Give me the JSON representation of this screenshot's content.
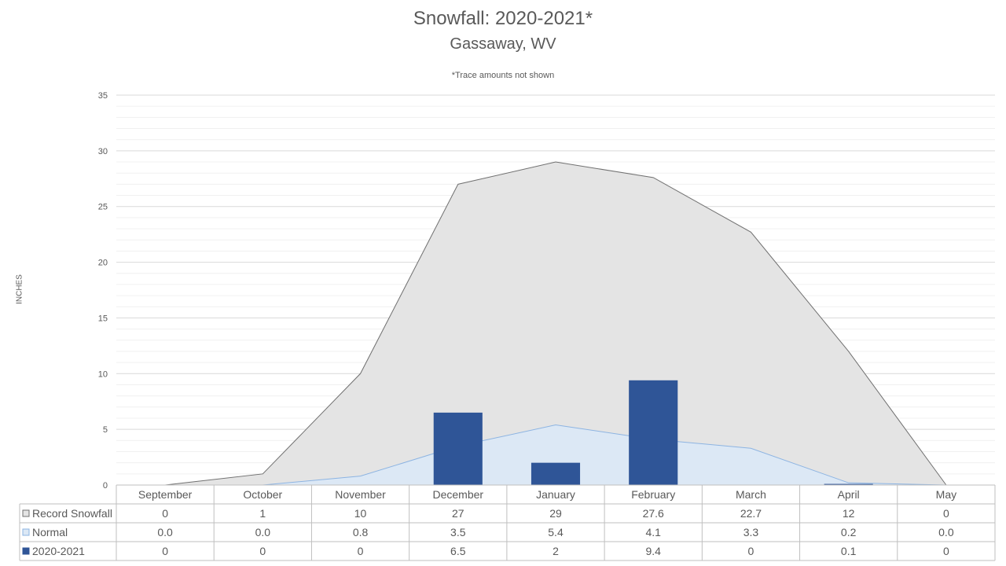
{
  "chart_data": {
    "type": "area",
    "title": "Snowfall: 2020-2021*",
    "subtitle": "Gassaway, WV",
    "note": "*Trace amounts not shown",
    "ylabel": "INCHES",
    "ylim": [
      0,
      35
    ],
    "yticks": [
      "0",
      "5",
      "10",
      "15",
      "20",
      "25",
      "30",
      "35"
    ],
    "grid": true,
    "categories": [
      "September",
      "October",
      "November",
      "December",
      "January",
      "February",
      "March",
      "April",
      "May"
    ],
    "series": [
      {
        "name": "Record Snowfall",
        "kind": "area",
        "color": "#e4e4e4",
        "line_color": "#707070",
        "values": [
          0,
          1,
          10,
          27,
          29,
          27.6,
          22.7,
          12,
          0
        ],
        "labels": [
          "0",
          "1",
          "10",
          "27",
          "29",
          "27.6",
          "22.7",
          "12",
          "0"
        ]
      },
      {
        "name": "Normal",
        "kind": "area",
        "color": "#dce8f5",
        "line_color": "#8db4e2",
        "values": [
          0.0,
          0.0,
          0.8,
          3.5,
          5.4,
          4.1,
          3.3,
          0.2,
          0.0
        ],
        "labels": [
          "0.0",
          "0.0",
          "0.8",
          "3.5",
          "5.4",
          "4.1",
          "3.3",
          "0.2",
          "0.0"
        ]
      },
      {
        "name": "2020-2021",
        "kind": "bar",
        "color": "#2f5597",
        "values": [
          0,
          0,
          0,
          6.5,
          2,
          9.4,
          0,
          0.1,
          0
        ],
        "labels": [
          "0",
          "0",
          "0",
          "6.5",
          "2",
          "9.4",
          "0",
          "0.1",
          "0"
        ]
      }
    ]
  }
}
